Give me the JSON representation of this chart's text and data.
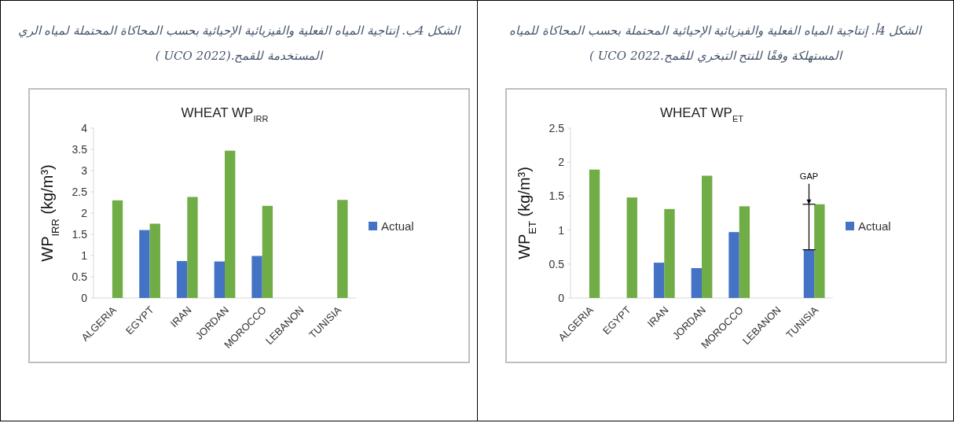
{
  "chart_data": [
    {
      "type": "bar",
      "title": "WHEAT WP$_{IRR}$",
      "ylabel": "WP$_{IRR}$  (kg/m³)",
      "categories": [
        "ALGERIA",
        "EGYPT",
        "IRAN",
        "JORDAN",
        "MOROCCO",
        "LEBANON",
        "TUNISIA"
      ],
      "series": [
        {
          "name": "Actual",
          "color": "#4472c4",
          "values": [
            null,
            1.6,
            0.87,
            0.86,
            0.99,
            null,
            null
          ]
        },
        {
          "color": "#70ad47",
          "values": [
            2.3,
            1.75,
            2.38,
            3.47,
            2.17,
            null,
            2.31
          ]
        }
      ],
      "ylim": [
        0,
        4
      ],
      "yticks": [
        0,
        0.5,
        1,
        1.5,
        2,
        2.5,
        3,
        3.5,
        4
      ],
      "legend": "right",
      "grid": false,
      "annotations": [
        "الشكل 4ب. إنتاجية المياه الفعلية والفيزيائية الإحيائية بحسب المحاكاة المحتملة لمياه الري المستخدمة للقمح.(UCO 2022 )"
      ]
    },
    {
      "type": "bar",
      "title": "WHEAT WP$_{ET}$",
      "ylabel": "WP$_{ET}$ (kg/m³)",
      "categories": [
        "ALGERIA",
        "EGYPT",
        "IRAN",
        "JORDAN",
        "MOROCCO",
        "LEBANON",
        "TUNISIA"
      ],
      "series": [
        {
          "name": "Actual",
          "color": "#4472c4",
          "values": [
            null,
            null,
            0.52,
            0.44,
            0.97,
            null,
            0.71
          ]
        },
        {
          "color": "#70ad47",
          "values": [
            1.89,
            1.48,
            1.31,
            1.8,
            1.35,
            null,
            1.38
          ]
        }
      ],
      "ylim": [
        0,
        2.5
      ],
      "yticks": [
        0,
        0.5,
        1,
        1.5,
        2,
        2.5
      ],
      "legend": "right",
      "grid": false,
      "annotations": [
        "الشكل 4أ. إنتاجية المياه الفعلية والفيزيائية الإحيائية المحتملة بحسب المحاكاة للمياه المستهلكة وفقًا للنتح التبخري للقمح.2022 UCO )",
        {
          "text": "GAP",
          "x": "TUNISIA",
          "y": 1.38
        }
      ]
    }
  ]
}
